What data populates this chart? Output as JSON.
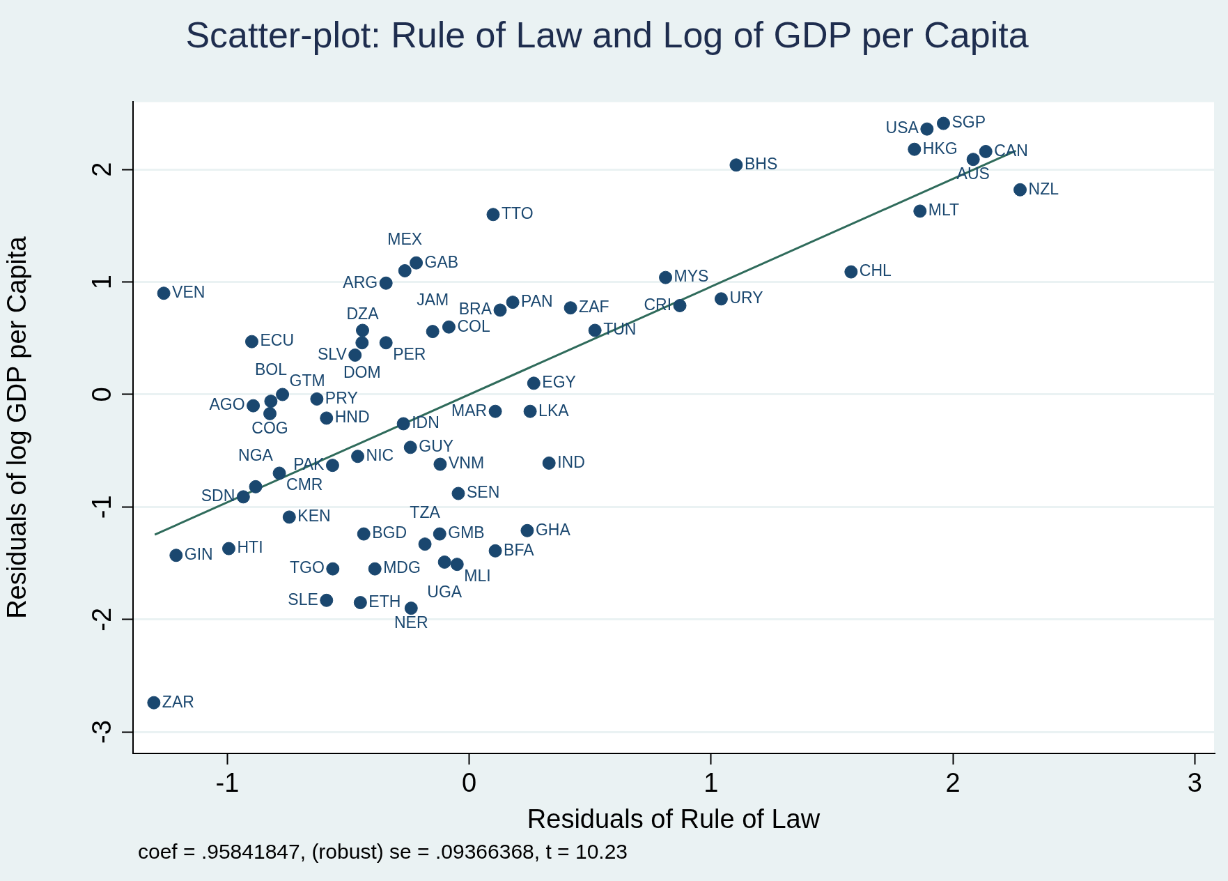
{
  "chart_data": {
    "type": "scatter",
    "title": "Scatter-plot: Rule of Law and Log of GDP per Capita",
    "xlabel": "Residuals of Rule of Law",
    "ylabel": "Residuals of log GDP per Capita",
    "annotations": [
      "coef = .95841847, (robust) se = .09366368, t = 10.23"
    ],
    "xlim": [
      -1.39,
      3.08
    ],
    "xticks": [
      -1,
      0,
      1,
      2,
      3
    ],
    "ylim": [
      -3.19,
      2.6
    ],
    "yticks": [
      -3,
      -2,
      -1,
      0,
      1,
      2
    ],
    "grid": "y",
    "legend": false,
    "series": [
      {
        "marker": "circle",
        "color": "#1a476f",
        "x": [
          -1.263,
          -0.899,
          -0.344,
          -0.266,
          -0.219,
          -0.441,
          -0.443,
          -0.344,
          -0.472,
          -0.151,
          -0.084,
          0.099,
          0.128,
          0.18,
          0.419,
          0.52,
          0.267,
          0.108,
          0.252,
          0.33,
          -0.12,
          -0.893,
          -0.82,
          -0.772,
          -0.63,
          -0.824,
          -0.59,
          -0.272,
          -0.243,
          -0.461,
          -0.565,
          -0.785,
          -0.883,
          -0.934,
          -0.744,
          -0.045,
          -1.212,
          -0.994,
          -1.304,
          -0.436,
          -0.122,
          -0.183,
          -0.564,
          -0.39,
          -0.102,
          -0.05,
          0.108,
          -0.59,
          -0.45,
          -0.24,
          0.24,
          0.812,
          0.871,
          1.042,
          1.579,
          1.104,
          1.864,
          1.893,
          1.961,
          1.841,
          2.136,
          2.084,
          2.278
        ],
        "values": [
          0.9,
          0.47,
          0.99,
          1.1,
          1.17,
          0.57,
          0.46,
          0.46,
          0.35,
          0.56,
          0.6,
          1.6,
          0.75,
          0.82,
          0.77,
          0.57,
          0.1,
          -0.15,
          -0.15,
          -0.61,
          -0.62,
          -0.1,
          -0.06,
          0.0,
          -0.04,
          -0.17,
          -0.21,
          -0.26,
          -0.47,
          -0.55,
          -0.63,
          -0.7,
          -0.82,
          -0.91,
          -1.09,
          -0.88,
          -1.43,
          -1.37,
          -2.74,
          -1.24,
          -1.24,
          -1.33,
          -1.55,
          -1.55,
          -1.49,
          -1.51,
          -1.39,
          -1.83,
          -1.85,
          -1.9,
          -1.21,
          1.04,
          0.79,
          0.85,
          1.09,
          2.04,
          1.63,
          2.36,
          2.41,
          2.18,
          2.16,
          2.09,
          1.82
        ],
        "value_labels": [
          "VEN",
          "ECU",
          "ARG",
          "MEX",
          "GAB",
          "DZA",
          "DOM",
          "PER",
          "SLV",
          "JAM",
          "COL",
          "TTO",
          "BRA",
          "PAN",
          "ZAF",
          "TUN",
          "EGY",
          "MAR",
          "LKA",
          "IND",
          "VNM",
          "AGO",
          "BOL",
          "GTM",
          "PRY",
          "COG",
          "HND",
          "IDN",
          "GUY",
          "NIC",
          "PAK",
          "CMR",
          "NGA",
          "SDN",
          "KEN",
          "SEN",
          "GIN",
          "HTI",
          "ZAR",
          "BGD",
          "GMB",
          "TZA",
          "TGO",
          "MDG",
          "UGA",
          "MLI",
          "BFA",
          "SLE",
          "ETH",
          "NER",
          "GHA",
          "MYS",
          "CRI",
          "URY",
          "CHL",
          "BHS",
          "MLT",
          "USA",
          "SGP",
          "HKG",
          "CAN",
          "AUS",
          "NZL"
        ]
      },
      {
        "type": "line",
        "color": "#2f6b5b",
        "x": [
          -1.3,
          2.26
        ],
        "values": [
          -1.246,
          2.166
        ]
      }
    ]
  }
}
